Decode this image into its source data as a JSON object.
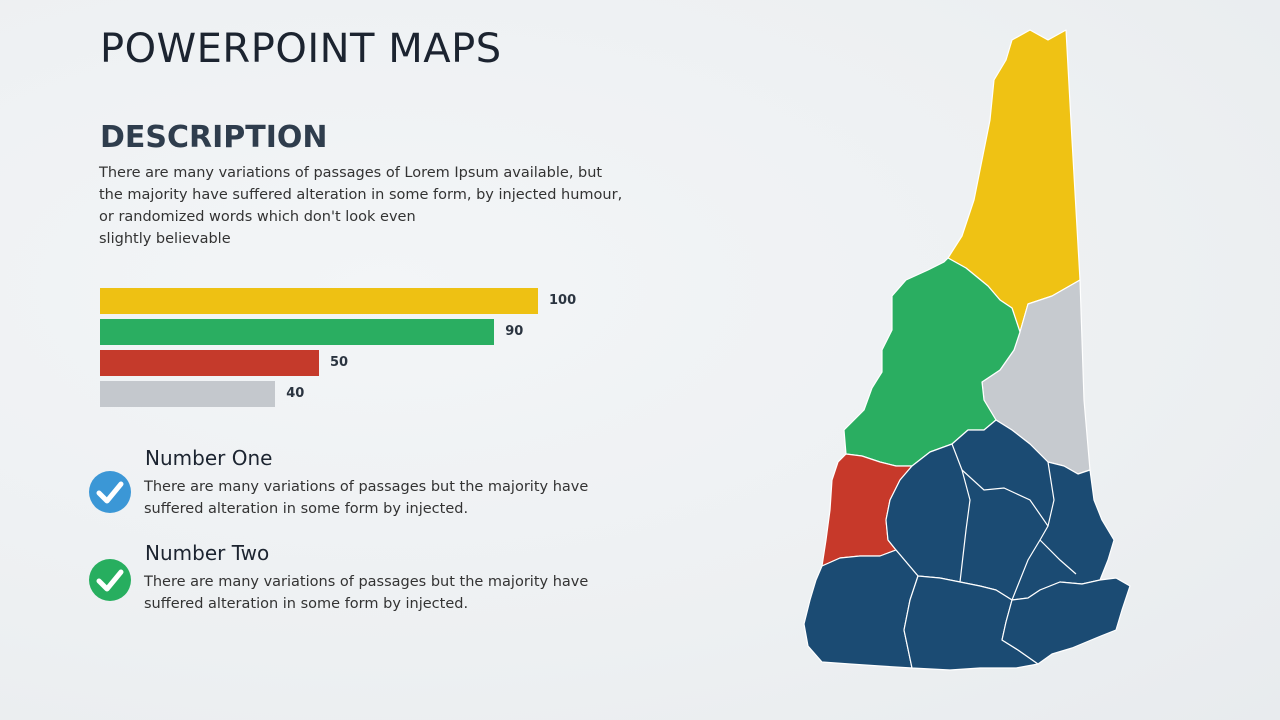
{
  "slide": {
    "title": "POWERPOINT MAPS",
    "description": {
      "heading": "DESCRIPTION",
      "lines": [
        "There are many variations of passages of Lorem Ipsum available, but",
        "the majority have suffered alteration in some form, by injected humour,",
        "or randomized words which don't look even",
        "slightly believable"
      ]
    },
    "bars": [
      {
        "value": 100,
        "label": "100",
        "color": "#eec113"
      },
      {
        "value": 90,
        "label": "90",
        "color": "#2aae61"
      },
      {
        "value": 50,
        "label": "50",
        "color": "#c53a2b"
      },
      {
        "value": 40,
        "label": "40",
        "color": "#c4c8cd"
      }
    ],
    "items": [
      {
        "heading": "Number One",
        "lines": [
          "There are many variations of passages but the majority have",
          "suffered alteration in some form by injected."
        ],
        "icon": "check-circle-icon",
        "color": "#3b97d6"
      },
      {
        "heading": "Number Two",
        "lines": [
          "There are many variations of passages but the majority have",
          "suffered alteration in some form by injected."
        ],
        "icon": "check-circle-icon",
        "color": "#27ae5f"
      }
    ],
    "map": {
      "colors": {
        "north": "#efc214",
        "green": "#2aae61",
        "gray": "#c6cacf",
        "red": "#c7392a",
        "blue": "#1b4b73"
      }
    }
  }
}
